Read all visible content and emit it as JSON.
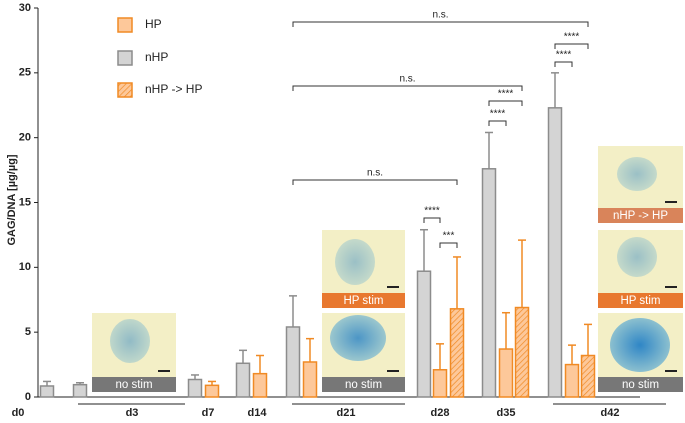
{
  "chart_data": {
    "type": "bar",
    "ylabel": "GAG/DNA [µg/µg]",
    "categories": [
      "d0",
      "d3",
      "d7",
      "d14",
      "d21",
      "d28",
      "d35",
      "d42"
    ],
    "series": [
      {
        "name": "HP",
        "color": "#f08a24",
        "fill": "#fdc89a",
        "hatch": false,
        "values": [
          null,
          null,
          0.9,
          1.8,
          2.7,
          2.1,
          3.7,
          2.5
        ],
        "errors": [
          null,
          null,
          0.3,
          1.4,
          1.8,
          2.0,
          2.8,
          1.5
        ]
      },
      {
        "name": "nHP",
        "color": "#8c8c8c",
        "fill": "#d4d4d4",
        "hatch": false,
        "values": [
          0.85,
          0.95,
          1.35,
          2.6,
          5.4,
          9.7,
          17.6,
          22.3
        ],
        "errors": [
          0.35,
          0.15,
          0.35,
          1.0,
          2.4,
          3.2,
          2.8,
          2.7
        ]
      },
      {
        "name": "nHP -> HP",
        "color": "#f08a24",
        "fill": "#fdc89a",
        "hatch": true,
        "values": [
          null,
          null,
          null,
          null,
          null,
          6.8,
          6.9,
          3.2
        ],
        "errors": [
          null,
          null,
          null,
          null,
          null,
          4.0,
          5.2,
          2.4
        ]
      }
    ],
    "ylim": [
      0,
      30
    ],
    "yticks": [
      0,
      5,
      10,
      15,
      20,
      25,
      30
    ],
    "legend": "top-left",
    "annotations": [
      "n.s.",
      "n.s.",
      "n.s.",
      "****",
      "***",
      "****",
      "****",
      "****",
      "****"
    ],
    "image_labels": [
      "no stim",
      "HP stim",
      "no stim",
      "nHP -> HP",
      "HP stim",
      "no stim"
    ]
  }
}
